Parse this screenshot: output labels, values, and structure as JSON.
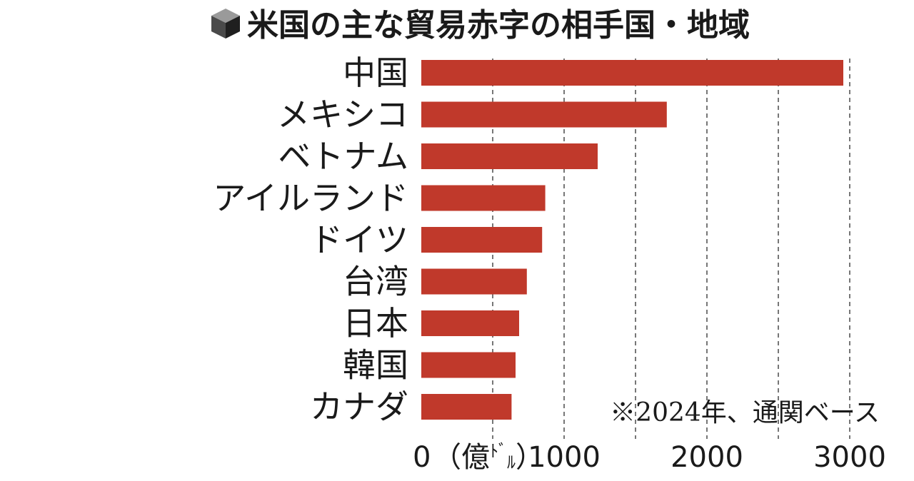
{
  "chart_data": {
    "type": "bar",
    "orientation": "horizontal",
    "title": "米国の主な貿易赤字の相手国・地域",
    "categories": [
      "中国",
      "メキシコ",
      "ベトナム",
      "アイルランド",
      "ドイツ",
      "台湾",
      "日本",
      "韓国",
      "カナダ"
    ],
    "values": [
      2955,
      1719,
      1235,
      868,
      846,
      739,
      685,
      660,
      632
    ],
    "unit_label": "（億ドル）",
    "unit_text_parts": [
      "（億",
      "ﾄﾞ",
      "ﾙ",
      "）"
    ],
    "x_ticks": [
      0,
      1000,
      2000,
      3000
    ],
    "xlim": [
      0,
      3000
    ],
    "grid": "vertical-dashed",
    "note": "※2024年、通関ベース",
    "bar_color": "#c0392b",
    "icon": "cube-icon"
  }
}
